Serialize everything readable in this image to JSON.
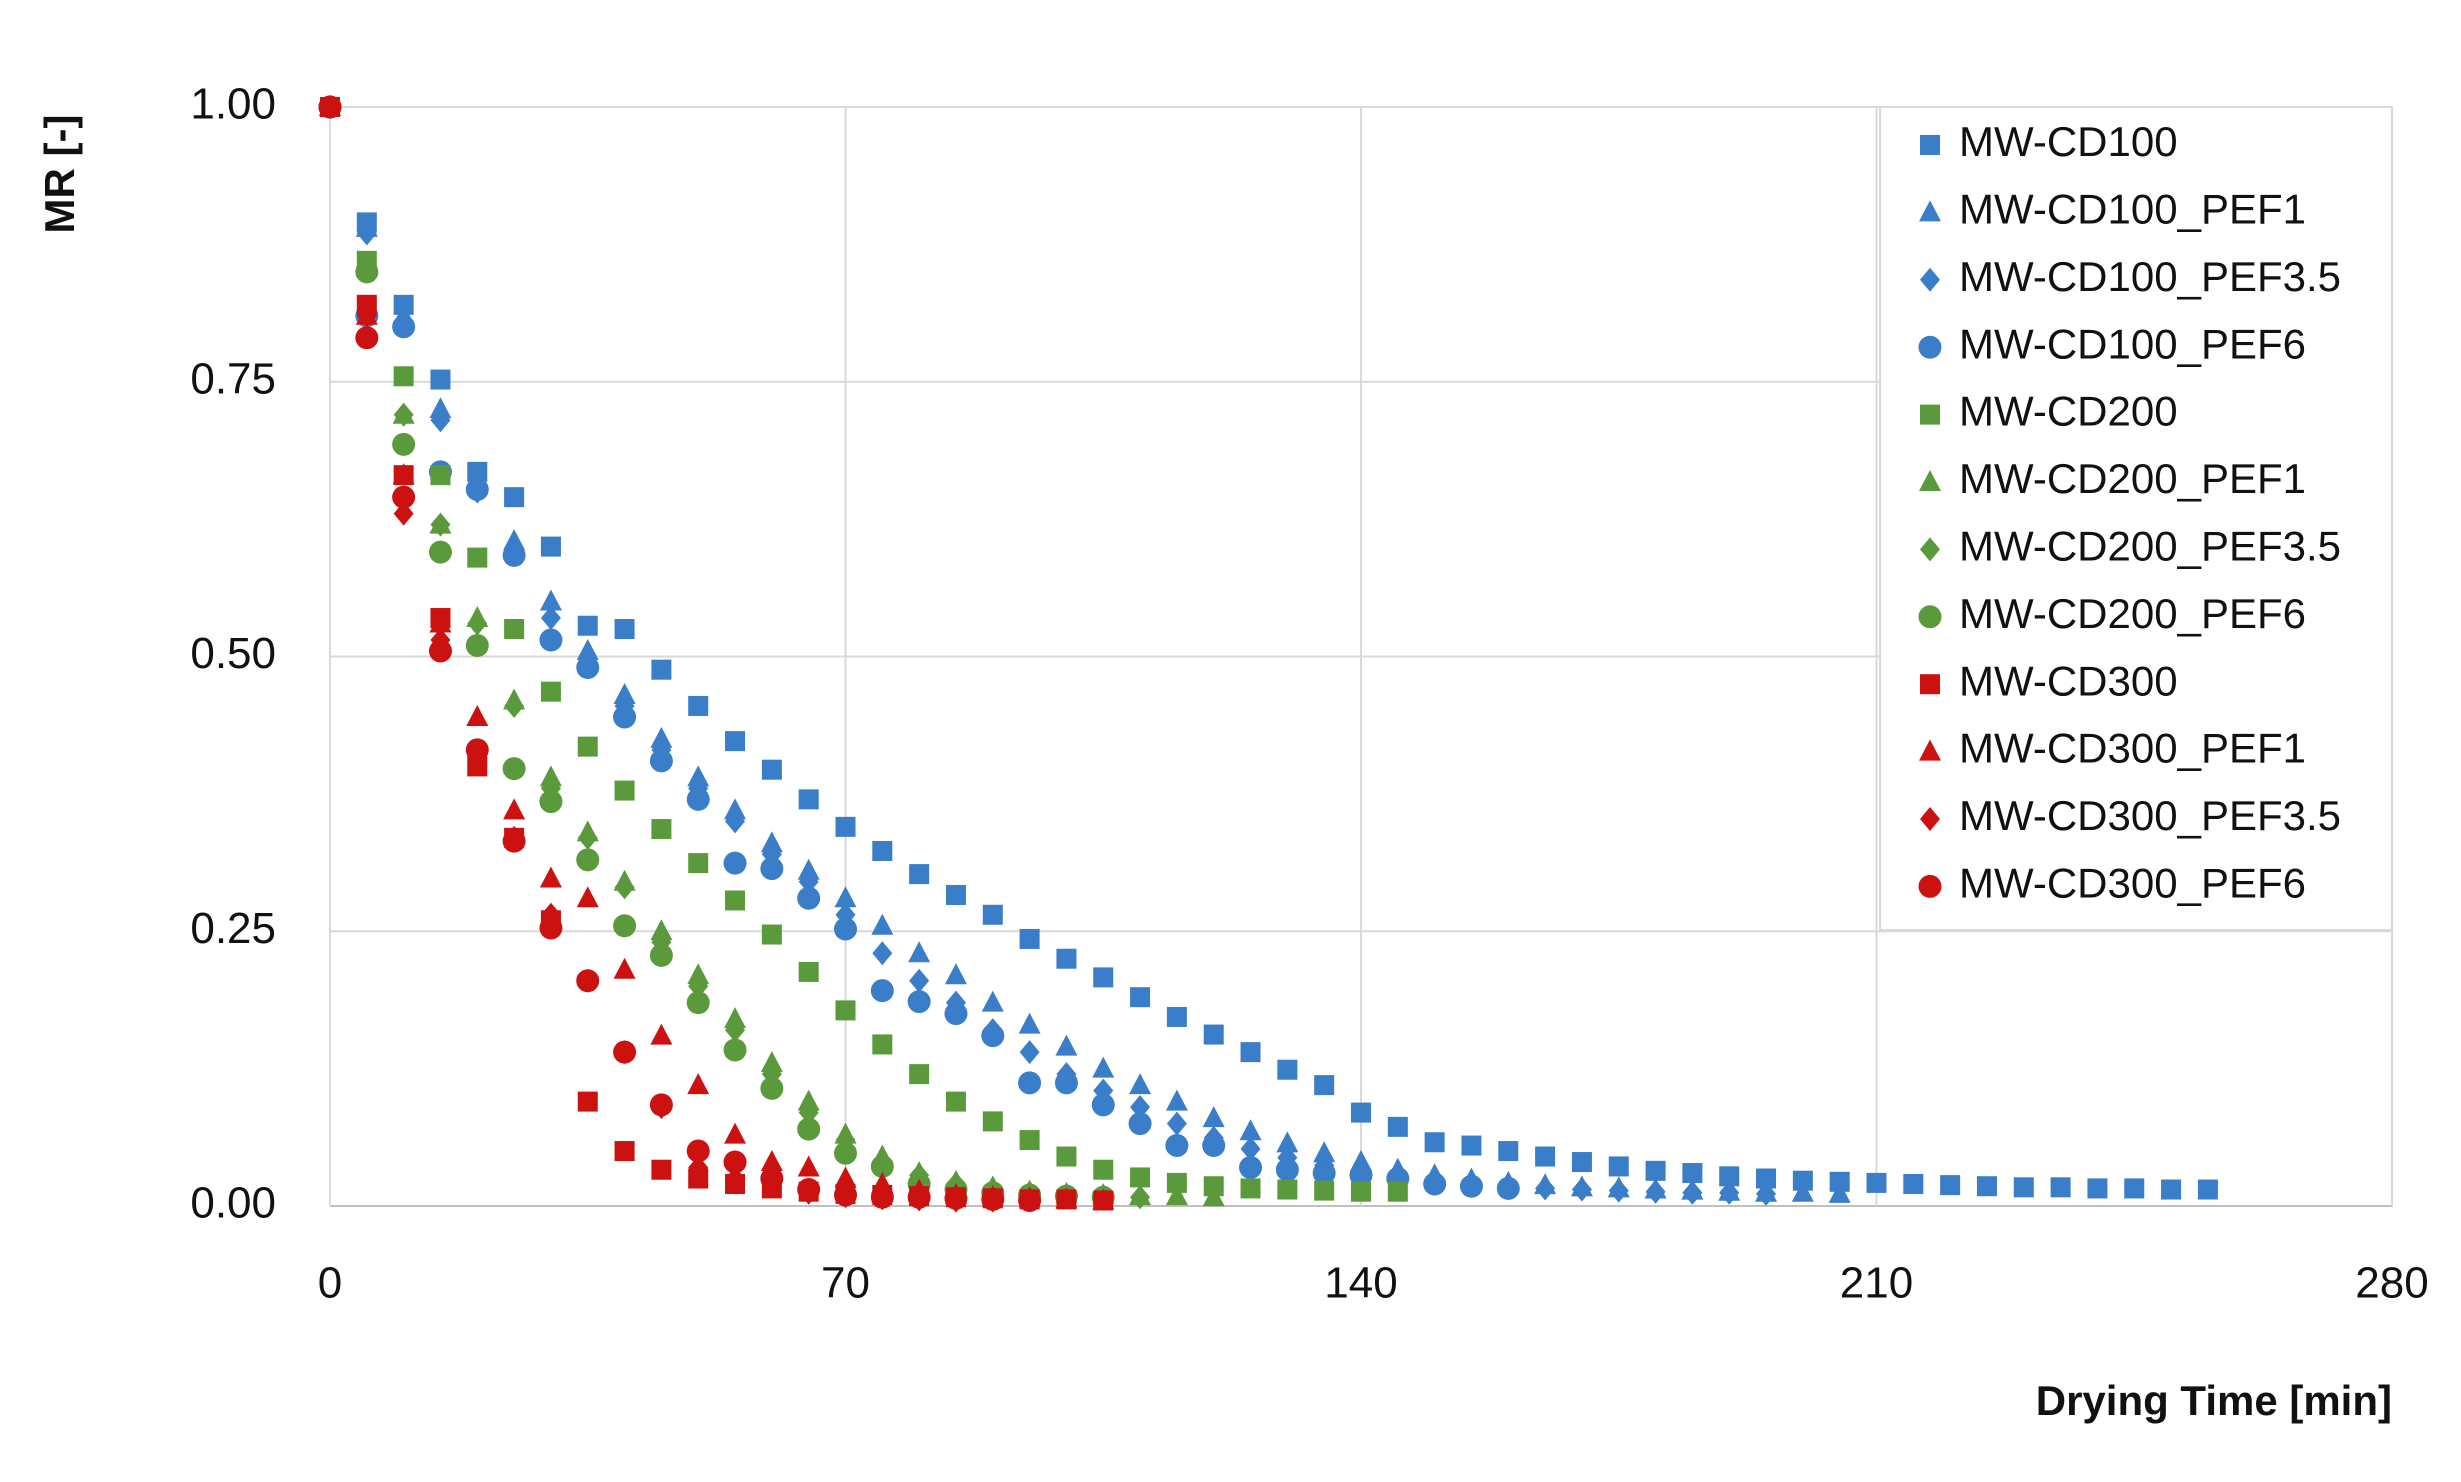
{
  "chart_data": {
    "type": "scatter",
    "x_label": "Drying Time [min]",
    "y_label": "MR [-]",
    "xlim": [
      0,
      280
    ],
    "xticks": [
      0,
      70,
      140,
      210,
      280
    ],
    "ylim": [
      0,
      1
    ],
    "yticks": [
      {
        "value": 0,
        "label": "0.00"
      },
      {
        "value": 0.25,
        "label": "0.25"
      },
      {
        "value": 0.5,
        "label": "0.50"
      },
      {
        "value": 0.75,
        "label": "0.75"
      },
      {
        "value": 1,
        "label": "1.00"
      }
    ],
    "grid": true,
    "legend": "upper right",
    "series": [
      {
        "name": "MW-CD100",
        "color": "#3a7dc9",
        "marker": "square",
        "x": [
          0,
          5,
          10,
          15,
          20,
          25,
          30,
          35,
          40,
          45,
          50,
          55,
          60,
          65,
          70,
          75,
          80,
          85,
          90,
          95,
          100,
          105,
          110,
          115,
          120,
          125,
          130,
          135,
          140,
          145,
          150,
          155,
          160,
          165,
          170,
          175,
          180,
          185,
          190,
          195,
          200,
          205,
          210,
          215,
          220,
          225,
          230,
          235,
          240,
          245,
          250,
          255
        ],
        "values": [
          1,
          0.895,
          0.82,
          0.752,
          0.668,
          0.645,
          0.6,
          0.528,
          0.525,
          0.488,
          0.455,
          0.423,
          0.397,
          0.37,
          0.345,
          0.323,
          0.302,
          0.283,
          0.265,
          0.243,
          0.225,
          0.208,
          0.19,
          0.172,
          0.156,
          0.14,
          0.124,
          0.11,
          0.085,
          0.072,
          0.058,
          0.055,
          0.05,
          0.045,
          0.04,
          0.036,
          0.032,
          0.03,
          0.027,
          0.025,
          0.023,
          0.022,
          0.021,
          0.02,
          0.019,
          0.018,
          0.017,
          0.017,
          0.016,
          0.016,
          0.015,
          0.015
        ]
      },
      {
        "name": "MW-CD100_PEF1",
        "color": "#3a7dc9",
        "marker": "triangle",
        "x": [
          0,
          5,
          10,
          15,
          20,
          25,
          30,
          35,
          40,
          45,
          50,
          55,
          60,
          65,
          70,
          75,
          80,
          85,
          90,
          95,
          100,
          105,
          110,
          115,
          120,
          125,
          130,
          135,
          140,
          145,
          150,
          155,
          160,
          165,
          170,
          175,
          180,
          185,
          190,
          195,
          200,
          205
        ],
        "values": [
          1,
          0.89,
          0.81,
          0.725,
          0.66,
          0.605,
          0.55,
          0.505,
          0.465,
          0.425,
          0.39,
          0.36,
          0.33,
          0.305,
          0.28,
          0.255,
          0.23,
          0.21,
          0.185,
          0.165,
          0.145,
          0.125,
          0.11,
          0.095,
          0.08,
          0.068,
          0.057,
          0.048,
          0.04,
          0.033,
          0.028,
          0.024,
          0.021,
          0.019,
          0.017,
          0.016,
          0.015,
          0.014,
          0.013,
          0.012,
          0.012,
          0.011
        ]
      },
      {
        "name": "MW-CD100_PEF3.5",
        "color": "#3a7dc9",
        "marker": "diamond",
        "x": [
          0,
          5,
          10,
          15,
          20,
          25,
          30,
          35,
          40,
          45,
          50,
          55,
          60,
          65,
          70,
          75,
          80,
          85,
          90,
          95,
          100,
          105,
          110,
          115,
          120,
          125,
          130,
          135,
          140,
          145,
          150,
          155,
          160,
          165,
          170,
          175,
          180,
          185,
          190,
          195
        ],
        "values": [
          1,
          0.885,
          0.805,
          0.715,
          0.65,
          0.595,
          0.535,
          0.495,
          0.455,
          0.415,
          0.38,
          0.35,
          0.32,
          0.295,
          0.265,
          0.23,
          0.205,
          0.185,
          0.16,
          0.14,
          0.12,
          0.105,
          0.09,
          0.075,
          0.062,
          0.052,
          0.044,
          0.037,
          0.031,
          0.026,
          0.022,
          0.02,
          0.018,
          0.016,
          0.015,
          0.014,
          0.013,
          0.012,
          0.012,
          0.011
        ]
      },
      {
        "name": "MW-CD100_PEF6",
        "color": "#3a7dc9",
        "marker": "circle",
        "x": [
          0,
          5,
          10,
          15,
          20,
          25,
          30,
          35,
          40,
          45,
          50,
          55,
          60,
          65,
          70,
          75,
          80,
          85,
          90,
          95,
          100,
          105,
          110,
          115,
          120,
          125,
          130,
          135,
          140,
          145,
          150,
          155,
          160
        ],
        "values": [
          1,
          0.81,
          0.8,
          0.668,
          0.652,
          0.592,
          0.515,
          0.49,
          0.445,
          0.405,
          0.37,
          0.312,
          0.307,
          0.28,
          0.252,
          0.196,
          0.186,
          0.175,
          0.155,
          0.112,
          0.112,
          0.092,
          0.075,
          0.055,
          0.055,
          0.035,
          0.033,
          0.03,
          0.028,
          0.025,
          0.02,
          0.018,
          0.016
        ]
      },
      {
        "name": "MW-CD200",
        "color": "#5b9a3c",
        "marker": "square",
        "x": [
          0,
          5,
          10,
          15,
          20,
          25,
          30,
          35,
          40,
          45,
          50,
          55,
          60,
          65,
          70,
          75,
          80,
          85,
          90,
          95,
          100,
          105,
          110,
          115,
          120,
          125,
          130,
          135,
          140,
          145
        ],
        "values": [
          1,
          0.86,
          0.755,
          0.665,
          0.59,
          0.525,
          0.468,
          0.418,
          0.378,
          0.343,
          0.312,
          0.278,
          0.247,
          0.213,
          0.178,
          0.147,
          0.12,
          0.095,
          0.077,
          0.06,
          0.045,
          0.033,
          0.026,
          0.021,
          0.018,
          0.016,
          0.015,
          0.014,
          0.013,
          0.013
        ]
      },
      {
        "name": "MW-CD200_PEF1",
        "color": "#5b9a3c",
        "marker": "triangle",
        "x": [
          0,
          5,
          10,
          15,
          20,
          25,
          30,
          35,
          40,
          45,
          50,
          55,
          60,
          65,
          70,
          75,
          80,
          85,
          90,
          95,
          100,
          105,
          110,
          115,
          120
        ],
        "values": [
          1,
          0.855,
          0.72,
          0.62,
          0.535,
          0.46,
          0.39,
          0.34,
          0.295,
          0.25,
          0.21,
          0.17,
          0.13,
          0.095,
          0.065,
          0.045,
          0.03,
          0.022,
          0.017,
          0.013,
          0.011,
          0.01,
          0.009,
          0.009,
          0.008
        ]
      },
      {
        "name": "MW-CD200_PEF3.5",
        "color": "#5b9a3c",
        "marker": "diamond",
        "x": [
          0,
          5,
          10,
          15,
          20,
          25,
          30,
          35,
          40,
          45,
          50,
          55,
          60,
          65,
          70,
          75,
          80,
          85,
          90,
          95,
          100,
          105,
          110
        ],
        "values": [
          1,
          0.85,
          0.72,
          0.62,
          0.53,
          0.455,
          0.38,
          0.335,
          0.29,
          0.24,
          0.2,
          0.16,
          0.12,
          0.085,
          0.06,
          0.04,
          0.028,
          0.02,
          0.015,
          0.012,
          0.01,
          0.009,
          0.008
        ]
      },
      {
        "name": "MW-CD200_PEF6",
        "color": "#5b9a3c",
        "marker": "circle",
        "x": [
          0,
          5,
          10,
          15,
          20,
          25,
          30,
          35,
          40,
          45,
          50,
          55,
          60,
          65,
          70,
          75,
          80,
          85,
          90,
          95,
          100,
          105
        ],
        "values": [
          1,
          0.85,
          0.693,
          0.595,
          0.51,
          0.398,
          0.368,
          0.315,
          0.255,
          0.228,
          0.185,
          0.142,
          0.107,
          0.07,
          0.048,
          0.036,
          0.02,
          0.015,
          0.012,
          0.01,
          0.009,
          0.008
        ]
      },
      {
        "name": "MW-CD300",
        "color": "#cc1111",
        "marker": "square",
        "x": [
          0,
          5,
          10,
          15,
          20,
          25,
          30,
          35,
          40,
          45,
          50,
          55,
          60,
          65,
          70,
          75,
          80,
          85,
          90,
          95,
          100,
          105
        ],
        "values": [
          1,
          0.82,
          0.665,
          0.535,
          0.4,
          0.335,
          0.26,
          0.095,
          0.05,
          0.033,
          0.025,
          0.02,
          0.016,
          0.013,
          0.011,
          0.01,
          0.009,
          0.008,
          0.007,
          0.006,
          0.006,
          0.005
        ]
      },
      {
        "name": "MW-CD300_PEF1",
        "color": "#cc1111",
        "marker": "triangle",
        "x": [
          0,
          5,
          10,
          15,
          20,
          25,
          30,
          35,
          40,
          45,
          50,
          55,
          60,
          65,
          70,
          75,
          80,
          85,
          90,
          95,
          100,
          105
        ],
        "values": [
          1,
          0.81,
          0.665,
          0.53,
          0.445,
          0.36,
          0.298,
          0.28,
          0.215,
          0.155,
          0.11,
          0.065,
          0.04,
          0.035,
          0.025,
          0.02,
          0.014,
          0.01,
          0.008,
          0.007,
          0.006,
          0.005
        ]
      },
      {
        "name": "MW-CD300_PEF3.5",
        "color": "#cc1111",
        "marker": "diamond",
        "x": [
          0,
          5,
          10,
          15,
          20,
          25,
          30,
          35,
          40,
          45,
          50,
          55,
          60,
          65,
          70,
          75,
          80,
          85,
          90
        ],
        "values": [
          1,
          0.81,
          0.63,
          0.515,
          0.41,
          0.335,
          0.265,
          0.205,
          0.14,
          0.09,
          0.035,
          0.025,
          0.018,
          0.012,
          0.009,
          0.007,
          0.006,
          0.005,
          0.005
        ]
      },
      {
        "name": "MW-CD300_PEF6",
        "color": "#cc1111",
        "marker": "circle",
        "x": [
          0,
          5,
          10,
          15,
          20,
          25,
          30,
          35,
          40,
          45,
          50,
          55,
          60,
          65,
          70,
          75,
          80,
          85,
          90,
          95
        ],
        "values": [
          1,
          0.79,
          0.645,
          0.505,
          0.415,
          0.332,
          0.253,
          0.205,
          0.14,
          0.092,
          0.05,
          0.04,
          0.025,
          0.015,
          0.01,
          0.008,
          0.008,
          0.007,
          0.006,
          0.005
        ]
      }
    ]
  }
}
